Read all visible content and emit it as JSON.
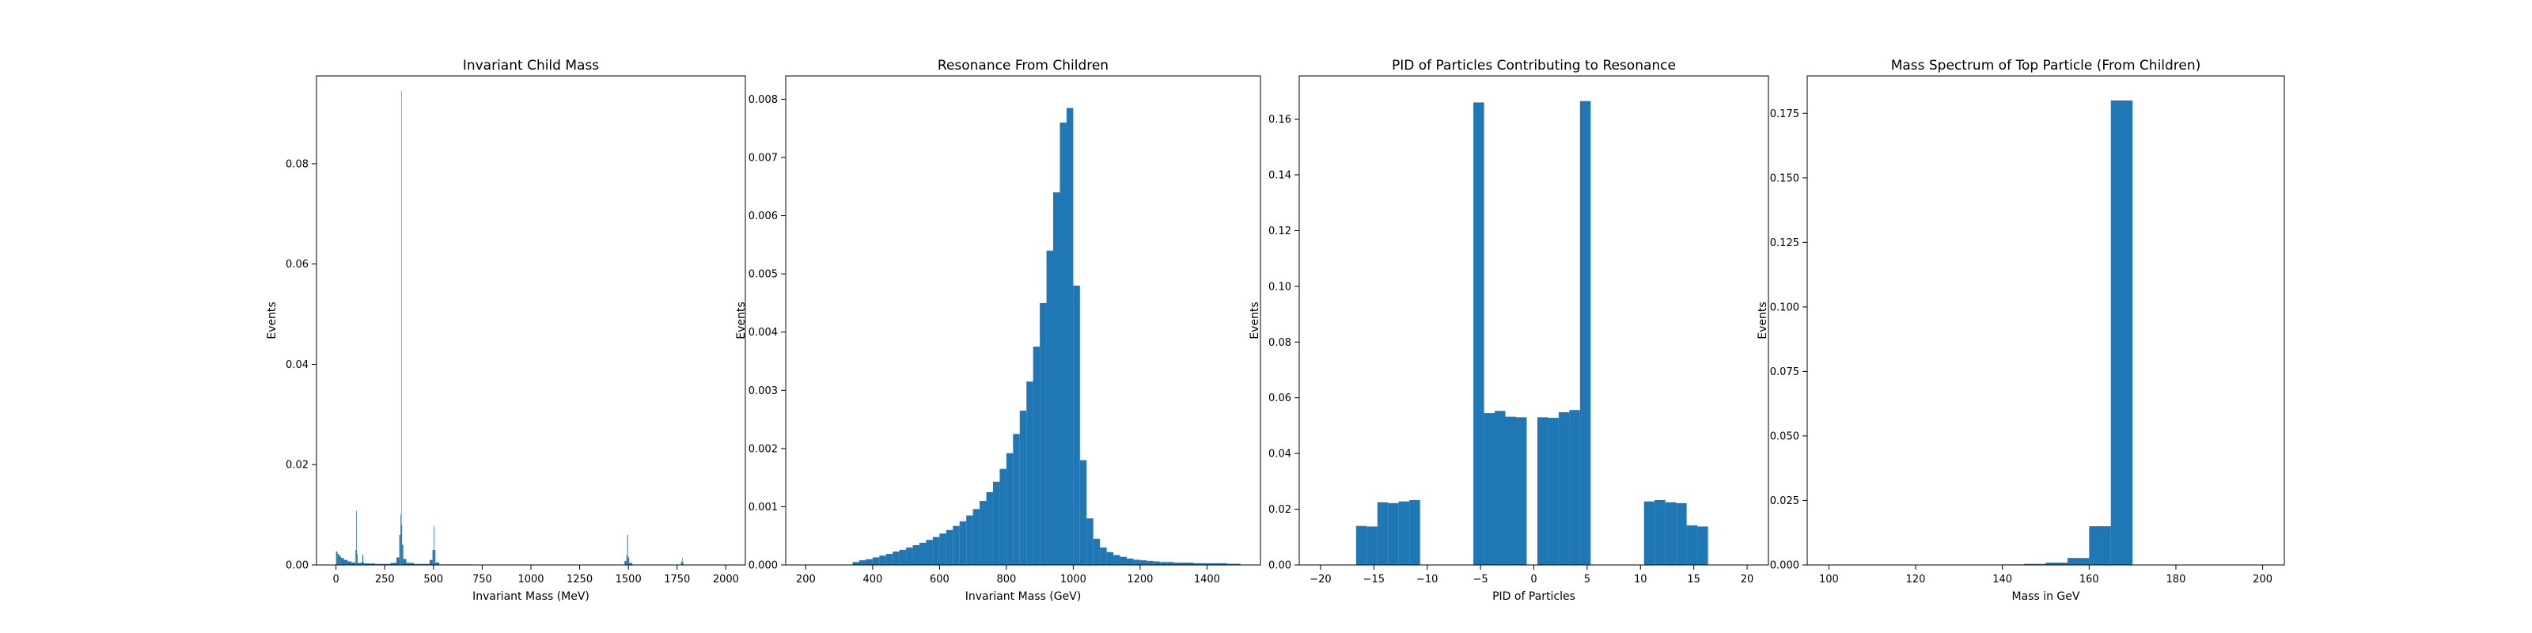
{
  "style": {
    "bar_color": "#1f77b4",
    "background": "#ffffff",
    "axis_color": "#000000"
  },
  "chart_data": [
    {
      "type": "bar",
      "title": "Invariant Child Mass",
      "xlabel": "Invariant Mass (MeV)",
      "ylabel": "Events",
      "xlim": [
        -100,
        2100
      ],
      "ylim": [
        0,
        0.0975
      ],
      "xticks": [
        0,
        250,
        500,
        750,
        1000,
        1250,
        1500,
        1750,
        2000
      ],
      "yticks": [
        0.0,
        0.02,
        0.04,
        0.06,
        0.08
      ],
      "xtick_labels": [
        "0",
        "250",
        "500",
        "750",
        "1000",
        "1250",
        "1500",
        "1750",
        "2000"
      ],
      "ytick_labels": [
        "0.00",
        "0.02",
        "0.04",
        "0.06",
        "0.08"
      ],
      "bins": [
        {
          "x0": 0,
          "x1": 3,
          "y": 0.0028
        },
        {
          "x0": 3,
          "x1": 8,
          "y": 0.0026
        },
        {
          "x0": 8,
          "x1": 15,
          "y": 0.0022
        },
        {
          "x0": 15,
          "x1": 25,
          "y": 0.0018
        },
        {
          "x0": 25,
          "x1": 40,
          "y": 0.0014
        },
        {
          "x0": 40,
          "x1": 60,
          "y": 0.001
        },
        {
          "x0": 60,
          "x1": 80,
          "y": 0.0007
        },
        {
          "x0": 80,
          "x1": 100,
          "y": 0.0005
        },
        {
          "x0": 100,
          "x1": 104,
          "y": 0.003
        },
        {
          "x0": 104,
          "x1": 107,
          "y": 0.0108
        },
        {
          "x0": 107,
          "x1": 111,
          "y": 0.0022
        },
        {
          "x0": 111,
          "x1": 130,
          "y": 0.0004
        },
        {
          "x0": 130,
          "x1": 135,
          "y": 0.0006
        },
        {
          "x0": 135,
          "x1": 140,
          "y": 0.002
        },
        {
          "x0": 140,
          "x1": 145,
          "y": 0.0005
        },
        {
          "x0": 145,
          "x1": 200,
          "y": 0.0003
        },
        {
          "x0": 200,
          "x1": 280,
          "y": 0.0002
        },
        {
          "x0": 280,
          "x1": 310,
          "y": 0.0004
        },
        {
          "x0": 310,
          "x1": 325,
          "y": 0.0015
        },
        {
          "x0": 325,
          "x1": 331,
          "y": 0.006
        },
        {
          "x0": 331,
          "x1": 334,
          "y": 0.01
        },
        {
          "x0": 334,
          "x1": 336,
          "y": 0.0945
        },
        {
          "x0": 336,
          "x1": 339,
          "y": 0.008
        },
        {
          "x0": 339,
          "x1": 345,
          "y": 0.004
        },
        {
          "x0": 345,
          "x1": 360,
          "y": 0.0012
        },
        {
          "x0": 360,
          "x1": 400,
          "y": 0.0004
        },
        {
          "x0": 400,
          "x1": 480,
          "y": 0.0002
        },
        {
          "x0": 480,
          "x1": 495,
          "y": 0.001
        },
        {
          "x0": 495,
          "x1": 501,
          "y": 0.003
        },
        {
          "x0": 501,
          "x1": 504,
          "y": 0.0078
        },
        {
          "x0": 504,
          "x1": 510,
          "y": 0.003
        },
        {
          "x0": 510,
          "x1": 530,
          "y": 0.0005
        },
        {
          "x0": 530,
          "x1": 700,
          "y": 0.0001
        },
        {
          "x0": 1480,
          "x1": 1490,
          "y": 0.0008
        },
        {
          "x0": 1490,
          "x1": 1494,
          "y": 0.002
        },
        {
          "x0": 1494,
          "x1": 1498,
          "y": 0.006
        },
        {
          "x0": 1498,
          "x1": 1504,
          "y": 0.0015
        },
        {
          "x0": 1504,
          "x1": 1520,
          "y": 0.0004
        },
        {
          "x0": 1770,
          "x1": 1775,
          "y": 0.0006
        },
        {
          "x0": 1775,
          "x1": 1778,
          "y": 0.0014
        },
        {
          "x0": 1778,
          "x1": 1782,
          "y": 0.0005
        }
      ]
    },
    {
      "type": "bar",
      "title": "Resonance From Children",
      "xlabel": "Invariant Mass (GeV)",
      "ylabel": "Events",
      "xlim": [
        140,
        1560
      ],
      "ylim": [
        0,
        0.0084
      ],
      "xticks": [
        200,
        400,
        600,
        800,
        1000,
        1200,
        1400
      ],
      "yticks": [
        0.0,
        0.001,
        0.002,
        0.003,
        0.004,
        0.005,
        0.006,
        0.007,
        0.008
      ],
      "xtick_labels": [
        "200",
        "400",
        "600",
        "800",
        "1000",
        "1200",
        "1400"
      ],
      "ytick_labels": [
        "0.000",
        "0.001",
        "0.002",
        "0.003",
        "0.004",
        "0.005",
        "0.006",
        "0.007",
        "0.008"
      ],
      "bin_width": 20,
      "bins": [
        {
          "x0": 340,
          "x1": 360,
          "y": 5e-05
        },
        {
          "x0": 360,
          "x1": 380,
          "y": 8e-05
        },
        {
          "x0": 380,
          "x1": 400,
          "y": 0.0001
        },
        {
          "x0": 400,
          "x1": 420,
          "y": 0.00013
        },
        {
          "x0": 420,
          "x1": 440,
          "y": 0.00016
        },
        {
          "x0": 440,
          "x1": 460,
          "y": 0.00019
        },
        {
          "x0": 460,
          "x1": 480,
          "y": 0.00023
        },
        {
          "x0": 480,
          "x1": 500,
          "y": 0.00026
        },
        {
          "x0": 500,
          "x1": 520,
          "y": 0.0003
        },
        {
          "x0": 520,
          "x1": 540,
          "y": 0.00034
        },
        {
          "x0": 540,
          "x1": 560,
          "y": 0.00038
        },
        {
          "x0": 560,
          "x1": 580,
          "y": 0.00043
        },
        {
          "x0": 580,
          "x1": 600,
          "y": 0.00048
        },
        {
          "x0": 600,
          "x1": 620,
          "y": 0.00054
        },
        {
          "x0": 620,
          "x1": 640,
          "y": 0.0006
        },
        {
          "x0": 640,
          "x1": 660,
          "y": 0.00067
        },
        {
          "x0": 660,
          "x1": 680,
          "y": 0.00075
        },
        {
          "x0": 680,
          "x1": 700,
          "y": 0.00085
        },
        {
          "x0": 700,
          "x1": 720,
          "y": 0.00096
        },
        {
          "x0": 720,
          "x1": 740,
          "y": 0.0011
        },
        {
          "x0": 740,
          "x1": 760,
          "y": 0.00125
        },
        {
          "x0": 760,
          "x1": 780,
          "y": 0.00143
        },
        {
          "x0": 780,
          "x1": 800,
          "y": 0.00165
        },
        {
          "x0": 800,
          "x1": 820,
          "y": 0.00192
        },
        {
          "x0": 820,
          "x1": 840,
          "y": 0.00225
        },
        {
          "x0": 840,
          "x1": 860,
          "y": 0.00265
        },
        {
          "x0": 860,
          "x1": 880,
          "y": 0.00315
        },
        {
          "x0": 880,
          "x1": 900,
          "y": 0.00375
        },
        {
          "x0": 900,
          "x1": 920,
          "y": 0.0045
        },
        {
          "x0": 920,
          "x1": 940,
          "y": 0.0054
        },
        {
          "x0": 940,
          "x1": 960,
          "y": 0.0064
        },
        {
          "x0": 960,
          "x1": 980,
          "y": 0.0076
        },
        {
          "x0": 980,
          "x1": 1000,
          "y": 0.00785
        },
        {
          "x0": 1000,
          "x1": 1020,
          "y": 0.0048
        },
        {
          "x0": 1020,
          "x1": 1040,
          "y": 0.0018
        },
        {
          "x0": 1040,
          "x1": 1060,
          "y": 0.0008
        },
        {
          "x0": 1060,
          "x1": 1080,
          "y": 0.00045
        },
        {
          "x0": 1080,
          "x1": 1100,
          "y": 0.0003
        },
        {
          "x0": 1100,
          "x1": 1120,
          "y": 0.00022
        },
        {
          "x0": 1120,
          "x1": 1140,
          "y": 0.00017
        },
        {
          "x0": 1140,
          "x1": 1160,
          "y": 0.00014
        },
        {
          "x0": 1160,
          "x1": 1180,
          "y": 0.00011
        },
        {
          "x0": 1180,
          "x1": 1200,
          "y": 9e-05
        },
        {
          "x0": 1200,
          "x1": 1220,
          "y": 8e-05
        },
        {
          "x0": 1220,
          "x1": 1240,
          "y": 7e-05
        },
        {
          "x0": 1240,
          "x1": 1260,
          "y": 6e-05
        },
        {
          "x0": 1260,
          "x1": 1280,
          "y": 5e-05
        },
        {
          "x0": 1280,
          "x1": 1300,
          "y": 5e-05
        },
        {
          "x0": 1300,
          "x1": 1320,
          "y": 4e-05
        },
        {
          "x0": 1320,
          "x1": 1340,
          "y": 4e-05
        },
        {
          "x0": 1340,
          "x1": 1360,
          "y": 4e-05
        },
        {
          "x0": 1360,
          "x1": 1380,
          "y": 3e-05
        },
        {
          "x0": 1380,
          "x1": 1400,
          "y": 3e-05
        },
        {
          "x0": 1400,
          "x1": 1420,
          "y": 3e-05
        },
        {
          "x0": 1420,
          "x1": 1440,
          "y": 3e-05
        },
        {
          "x0": 1440,
          "x1": 1460,
          "y": 3e-05
        },
        {
          "x0": 1460,
          "x1": 1480,
          "y": 2e-05
        },
        {
          "x0": 1480,
          "x1": 1500,
          "y": 2e-05
        }
      ]
    },
    {
      "type": "bar",
      "title": "PID of Particles Contributing to Resonance",
      "xlabel": "PID of Particles",
      "ylabel": "Events",
      "xlim": [
        -22,
        22
      ],
      "ylim": [
        0,
        0.1755
      ],
      "xticks": [
        -20,
        -15,
        -10,
        -5,
        0,
        5,
        10,
        15,
        20
      ],
      "yticks": [
        0.0,
        0.02,
        0.04,
        0.06,
        0.08,
        0.1,
        0.12,
        0.14,
        0.16
      ],
      "xtick_labels": [
        "−20",
        "−15",
        "−10",
        "−5",
        "0",
        "5",
        "10",
        "15",
        "20"
      ],
      "ytick_labels": [
        "0.00",
        "0.02",
        "0.04",
        "0.06",
        "0.08",
        "0.10",
        "0.12",
        "0.14",
        "0.16"
      ],
      "bins": [
        {
          "x0": -16.67,
          "x1": -15.67,
          "y": 0.014
        },
        {
          "x0": -15.67,
          "x1": -14.67,
          "y": 0.0138
        },
        {
          "x0": -14.67,
          "x1": -13.67,
          "y": 0.0225
        },
        {
          "x0": -13.67,
          "x1": -12.67,
          "y": 0.0222
        },
        {
          "x0": -12.67,
          "x1": -11.67,
          "y": 0.0228
        },
        {
          "x0": -11.67,
          "x1": -10.67,
          "y": 0.0233
        },
        {
          "x0": -5.67,
          "x1": -4.67,
          "y": 0.166
        },
        {
          "x0": -4.67,
          "x1": -3.67,
          "y": 0.0545
        },
        {
          "x0": -3.67,
          "x1": -2.67,
          "y": 0.0553
        },
        {
          "x0": -2.67,
          "x1": -1.67,
          "y": 0.0532
        },
        {
          "x0": -1.67,
          "x1": -0.67,
          "y": 0.053
        },
        {
          "x0": 0.33,
          "x1": 1.33,
          "y": 0.053
        },
        {
          "x0": 1.33,
          "x1": 2.33,
          "y": 0.0528
        },
        {
          "x0": 2.33,
          "x1": 3.33,
          "y": 0.0548
        },
        {
          "x0": 3.33,
          "x1": 4.33,
          "y": 0.0556
        },
        {
          "x0": 4.33,
          "x1": 5.33,
          "y": 0.1665
        },
        {
          "x0": 10.33,
          "x1": 11.33,
          "y": 0.0228
        },
        {
          "x0": 11.33,
          "x1": 12.33,
          "y": 0.0233
        },
        {
          "x0": 12.33,
          "x1": 13.33,
          "y": 0.0225
        },
        {
          "x0": 13.33,
          "x1": 14.33,
          "y": 0.0222
        },
        {
          "x0": 14.33,
          "x1": 15.33,
          "y": 0.0142
        },
        {
          "x0": 15.33,
          "x1": 16.33,
          "y": 0.0138
        }
      ]
    },
    {
      "type": "bar",
      "title": "Mass Spectrum of Top Particle (From Children)",
      "xlabel": "Mass in GeV",
      "ylabel": "Events",
      "xlim": [
        95,
        205
      ],
      "ylim": [
        0,
        0.1895
      ],
      "xticks": [
        100,
        120,
        140,
        160,
        180,
        200
      ],
      "yticks": [
        0.0,
        0.025,
        0.05,
        0.075,
        0.1,
        0.125,
        0.15,
        0.175
      ],
      "xtick_labels": [
        "100",
        "120",
        "140",
        "160",
        "180",
        "200"
      ],
      "ytick_labels": [
        "0.000",
        "0.025",
        "0.050",
        "0.075",
        "0.100",
        "0.125",
        "0.150",
        "0.175"
      ],
      "bins": [
        {
          "x0": 100,
          "x1": 105,
          "y": 0.0
        },
        {
          "x0": 105,
          "x1": 110,
          "y": 0.0
        },
        {
          "x0": 110,
          "x1": 115,
          "y": 0.0
        },
        {
          "x0": 115,
          "x1": 120,
          "y": 0.0
        },
        {
          "x0": 120,
          "x1": 125,
          "y": 0.0
        },
        {
          "x0": 125,
          "x1": 130,
          "y": 0.0
        },
        {
          "x0": 130,
          "x1": 135,
          "y": 0.0
        },
        {
          "x0": 135,
          "x1": 140,
          "y": 0.0
        },
        {
          "x0": 140,
          "x1": 145,
          "y": 0.0002
        },
        {
          "x0": 145,
          "x1": 150,
          "y": 0.0004
        },
        {
          "x0": 150,
          "x1": 155,
          "y": 0.0009
        },
        {
          "x0": 155,
          "x1": 160,
          "y": 0.0027
        },
        {
          "x0": 160,
          "x1": 165,
          "y": 0.015
        },
        {
          "x0": 165,
          "x1": 170,
          "y": 0.18
        },
        {
          "x0": 170,
          "x1": 175,
          "y": 0.0
        },
        {
          "x0": 175,
          "x1": 180,
          "y": 0.0
        },
        {
          "x0": 180,
          "x1": 185,
          "y": 0.0
        },
        {
          "x0": 185,
          "x1": 190,
          "y": 0.0
        },
        {
          "x0": 190,
          "x1": 195,
          "y": 0.0
        },
        {
          "x0": 195,
          "x1": 200,
          "y": 0.0
        }
      ]
    }
  ]
}
